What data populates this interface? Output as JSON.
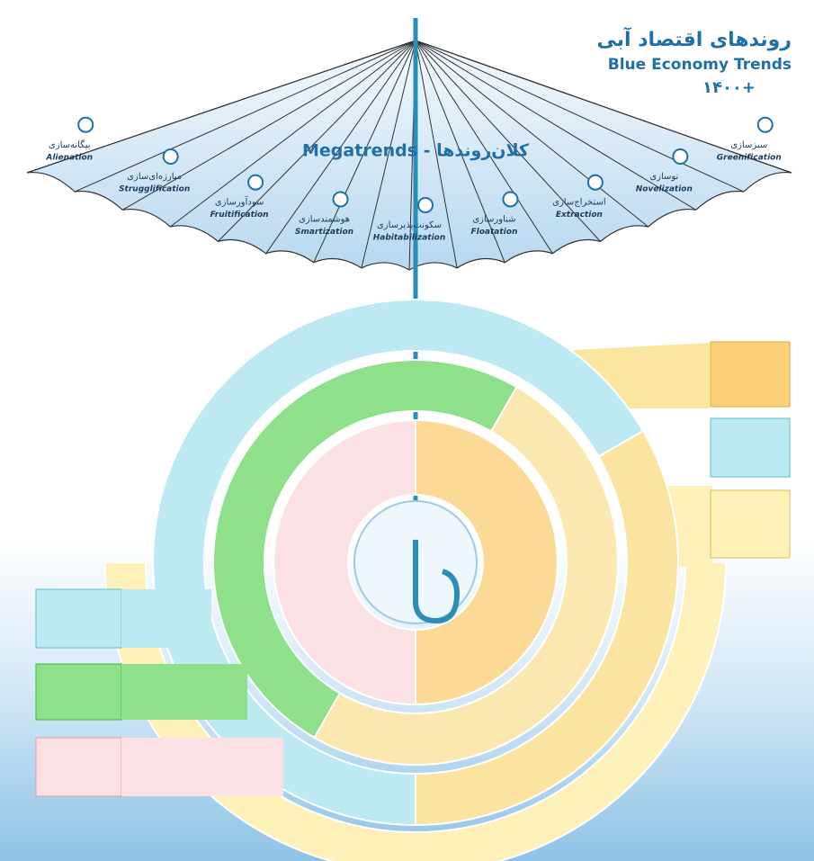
{
  "header": {
    "title": "روندهای اقتصاد آبی",
    "subtitle": "Blue Economy Trends",
    "year": "۱۴۰۰+"
  },
  "umbrella": {
    "title": "Megatrends - کلان‌روندها",
    "segments": [
      {
        "fa": "بیگانه‌سازی",
        "en": "Alienation"
      },
      {
        "fa": "مبارزه‌ای‌سازی",
        "en": "Strugglification"
      },
      {
        "fa": "سودآورسازی",
        "en": "Fruitification"
      },
      {
        "fa": "هوشمندسازی",
        "en": "Smartization"
      },
      {
        "fa": "سکونت‌پذیرسازی",
        "en": "Habitabilization"
      },
      {
        "fa": "شناورسازی",
        "en": "Floatation"
      },
      {
        "fa": "استخراج‌سازی",
        "en": "Extraction"
      },
      {
        "fa": "نوسازی",
        "en": "Novelization"
      },
      {
        "fa": "سبزسازی",
        "en": "Greenification"
      }
    ]
  }
}
